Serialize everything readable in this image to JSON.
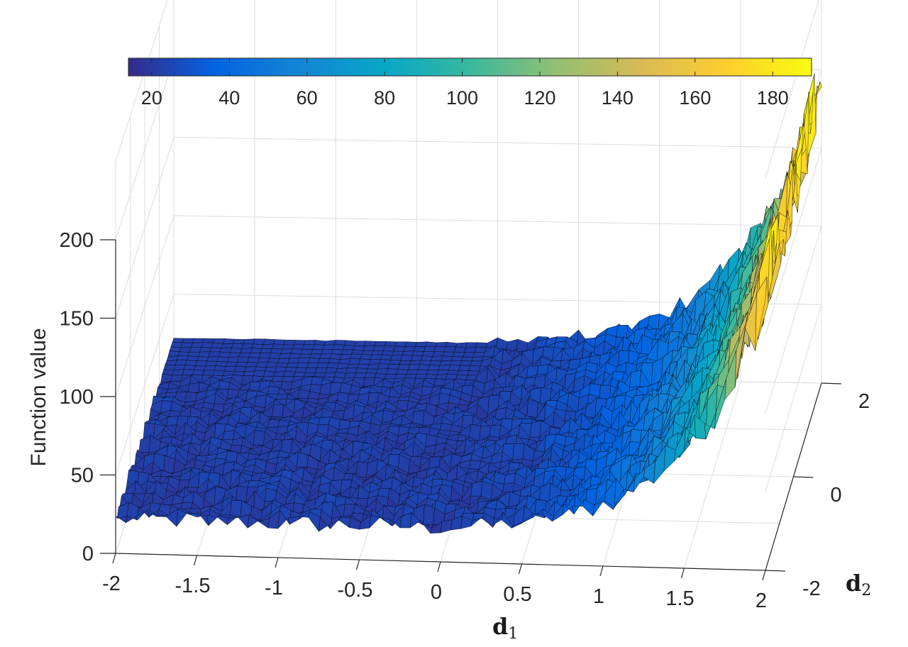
{
  "chart_data": {
    "type": "surface",
    "title": "",
    "zlabel": "Function value",
    "xlabel": {
      "symbol": "d",
      "subscript": "1"
    },
    "ylabel": {
      "symbol": "d",
      "subscript": "2"
    },
    "xlim": [
      -2,
      2
    ],
    "ylim": [
      -2,
      2
    ],
    "zlim": [
      0,
      200
    ],
    "x_ticks": [
      "-2",
      "-1.5",
      "-1",
      "-0.5",
      "0",
      "0.5",
      "1",
      "1.5",
      "2"
    ],
    "y_ticks": [
      "-2",
      "0",
      "2"
    ],
    "z_ticks": [
      "0",
      "50",
      "100",
      "150",
      "200"
    ],
    "grid": true,
    "colormap": "parula",
    "colorbar": {
      "location": "top",
      "range": [
        14,
        190
      ],
      "ticks": [
        "20",
        "40",
        "60",
        "80",
        "100",
        "120",
        "140",
        "160",
        "180"
      ]
    },
    "surface": {
      "description_values": "noisy surface; flat near z≈20 for d1 < 0, rising steeply with d1 to ≈190 at d1 = 2",
      "samples_d1": [
        -2,
        -1.5,
        -1,
        -0.5,
        0,
        0.5,
        1,
        1.5,
        2
      ],
      "approx_z_along_d1": [
        22,
        22,
        22,
        23,
        25,
        35,
        55,
        95,
        185
      ]
    }
  },
  "colors": {
    "parula": [
      "#352a87",
      "#0363e1",
      "#1485d4",
      "#06a7c6",
      "#38b99e",
      "#92bf73",
      "#d9ba56",
      "#fcce2e",
      "#f9fb0e"
    ],
    "edge": "#000000",
    "grid": "#dcdcdc",
    "axis": "#262626"
  }
}
